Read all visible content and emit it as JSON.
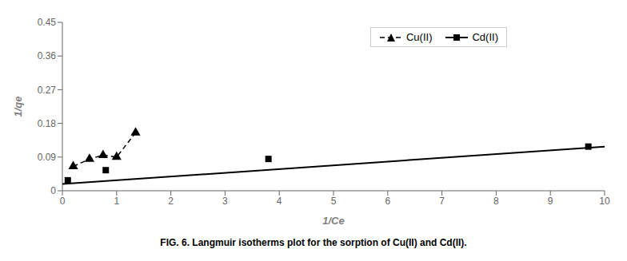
{
  "chart_data": {
    "type": "line",
    "title": "FIG. 6. Langmuir isotherms plot for the sorption of Cu(II) and Cd(II).",
    "xlabel": "1/Ce",
    "ylabel": "1/qe",
    "xlim": [
      0,
      10
    ],
    "ylim": [
      0,
      0.45
    ],
    "xticks": [
      0,
      1,
      2,
      3,
      4,
      5,
      6,
      7,
      8,
      9,
      10
    ],
    "yticks": [
      0,
      0.09,
      0.18,
      0.27,
      0.36,
      0.45
    ],
    "grid": false,
    "legend": "upper right",
    "series": [
      {
        "name": "Cu(II)",
        "type": "line",
        "color": "#000000",
        "marker": "triangle",
        "line_style": "dashed",
        "x": [
          0.2,
          0.5,
          0.75,
          1.0,
          1.35
        ],
        "values": [
          0.065,
          0.085,
          0.095,
          0.09,
          0.155
        ]
      },
      {
        "name": "Cd(II)",
        "type": "scatter",
        "color": "#000000",
        "marker": "square",
        "line_style": "solid",
        "x": [
          0.1,
          0.8,
          3.8,
          9.7
        ],
        "values": [
          0.028,
          0.055,
          0.085,
          0.118
        ],
        "trendline": {
          "x": [
            0,
            10
          ],
          "values": [
            0.018,
            0.118
          ]
        }
      }
    ]
  }
}
